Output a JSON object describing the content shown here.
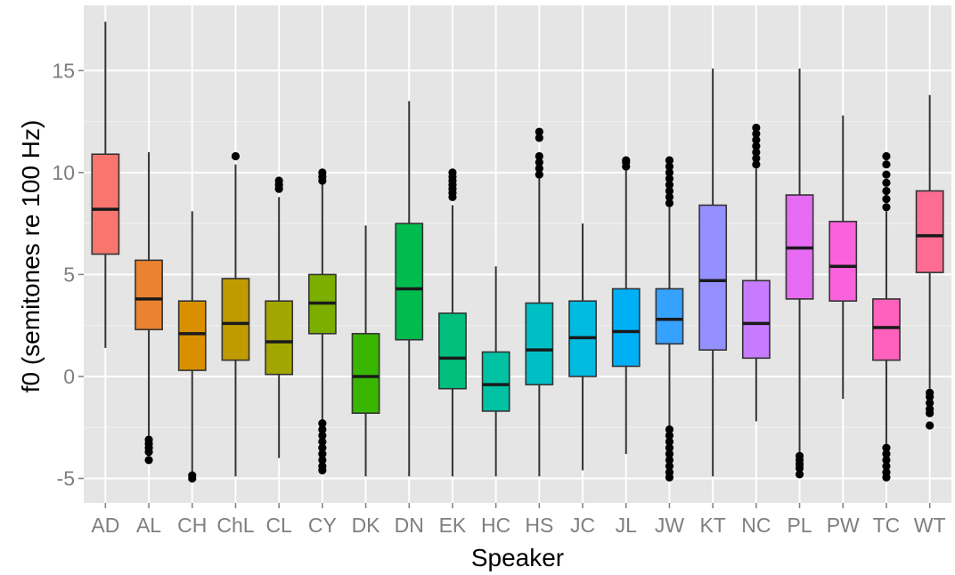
{
  "chart_data": {
    "type": "boxplot",
    "xlabel": "Speaker",
    "ylabel": "f0 (semitones re 100 Hz)",
    "ylim": [
      -6.2,
      18.2
    ],
    "yticks": [
      -5,
      0,
      5,
      10,
      15
    ],
    "ytick_labels": [
      "-5",
      "0",
      "5",
      "10",
      "15"
    ],
    "grid": true,
    "categories": [
      "AD",
      "AL",
      "CH",
      "ChL",
      "CL",
      "CY",
      "DK",
      "DN",
      "EK",
      "HC",
      "HS",
      "JC",
      "JL",
      "JW",
      "KT",
      "NC",
      "PL",
      "PW",
      "TC",
      "WT"
    ],
    "colors": [
      "#F8766D",
      "#EA8331",
      "#D89000",
      "#C09B00",
      "#A3A500",
      "#7CAE00",
      "#39B600",
      "#00BB4E",
      "#00BF7D",
      "#00C1A3",
      "#00BFC4",
      "#00BAE0",
      "#00B0F6",
      "#35A2FF",
      "#9590FF",
      "#C77CFF",
      "#E76BF3",
      "#FA62DB",
      "#FF62BC",
      "#FF6C91"
    ],
    "boxes": [
      {
        "label": "AD",
        "lower_whisker": 1.4,
        "q1": 6.0,
        "median": 8.2,
        "q3": 10.9,
        "upper_whisker": 17.4,
        "outliers": []
      },
      {
        "label": "AL",
        "lower_whisker": -2.9,
        "q1": 2.3,
        "median": 3.8,
        "q3": 5.7,
        "upper_whisker": 11.0,
        "outliers": [
          -3.1,
          -3.3,
          -3.5,
          -3.7,
          -4.1
        ]
      },
      {
        "label": "CH",
        "lower_whisker": -4.8,
        "q1": 0.3,
        "median": 2.1,
        "q3": 3.7,
        "upper_whisker": 8.1,
        "outliers": [
          -4.85,
          -5.0
        ]
      },
      {
        "label": "ChL",
        "lower_whisker": -4.9,
        "q1": 0.8,
        "median": 2.6,
        "q3": 4.8,
        "upper_whisker": 10.4,
        "outliers": [
          10.8
        ]
      },
      {
        "label": "CL",
        "lower_whisker": -4.0,
        "q1": 0.1,
        "median": 1.7,
        "q3": 3.7,
        "upper_whisker": 8.8,
        "outliers": [
          9.2,
          9.4,
          9.6
        ]
      },
      {
        "label": "CY",
        "lower_whisker": -2.2,
        "q1": 2.1,
        "median": 3.6,
        "q3": 5.0,
        "upper_whisker": 9.4,
        "outliers": [
          9.6,
          9.8,
          10.0,
          -2.3,
          -2.6,
          -2.9,
          -3.2,
          -3.5,
          -3.8,
          -4.1,
          -4.4,
          -4.6
        ]
      },
      {
        "label": "DK",
        "lower_whisker": -4.9,
        "q1": -1.8,
        "median": 0.0,
        "q3": 2.1,
        "upper_whisker": 7.4,
        "outliers": []
      },
      {
        "label": "DN",
        "lower_whisker": -4.9,
        "q1": 1.8,
        "median": 4.3,
        "q3": 7.5,
        "upper_whisker": 13.5,
        "outliers": []
      },
      {
        "label": "EK",
        "lower_whisker": -4.9,
        "q1": -0.6,
        "median": 0.9,
        "q3": 3.1,
        "upper_whisker": 8.4,
        "outliers": [
          8.8,
          9.0,
          9.2,
          9.4,
          9.6,
          9.8,
          10.0
        ]
      },
      {
        "label": "HC",
        "lower_whisker": -4.9,
        "q1": -1.7,
        "median": -0.4,
        "q3": 1.2,
        "upper_whisker": 5.4,
        "outliers": []
      },
      {
        "label": "HS",
        "lower_whisker": -4.9,
        "q1": -0.4,
        "median": 1.3,
        "q3": 3.6,
        "upper_whisker": 9.7,
        "outliers": [
          9.9,
          10.2,
          10.5,
          10.8,
          11.7,
          12.0
        ]
      },
      {
        "label": "JC",
        "lower_whisker": -4.6,
        "q1": 0.0,
        "median": 1.9,
        "q3": 3.7,
        "upper_whisker": 7.5,
        "outliers": []
      },
      {
        "label": "JL",
        "lower_whisker": -3.8,
        "q1": 0.5,
        "median": 2.2,
        "q3": 4.3,
        "upper_whisker": 10.1,
        "outliers": [
          10.3,
          10.5,
          10.6
        ]
      },
      {
        "label": "JW",
        "lower_whisker": -2.4,
        "q1": 1.6,
        "median": 2.8,
        "q3": 4.3,
        "upper_whisker": 8.3,
        "outliers": [
          8.5,
          8.8,
          9.1,
          9.4,
          9.7,
          10.0,
          10.3,
          10.6,
          -2.6,
          -2.9,
          -3.2,
          -3.5,
          -3.8,
          -4.1,
          -4.4,
          -4.7,
          -4.95
        ]
      },
      {
        "label": "KT",
        "lower_whisker": -4.9,
        "q1": 1.3,
        "median": 4.7,
        "q3": 8.4,
        "upper_whisker": 15.1,
        "outliers": []
      },
      {
        "label": "NC",
        "lower_whisker": -2.2,
        "q1": 0.9,
        "median": 2.6,
        "q3": 4.7,
        "upper_whisker": 10.2,
        "outliers": [
          10.4,
          10.7,
          11.0,
          11.3,
          11.6,
          11.9,
          12.2
        ]
      },
      {
        "label": "PL",
        "lower_whisker": -3.8,
        "q1": 3.8,
        "median": 6.3,
        "q3": 8.9,
        "upper_whisker": 15.1,
        "outliers": [
          -3.9,
          -4.1,
          -4.3,
          -4.5,
          -4.8
        ]
      },
      {
        "label": "PW",
        "lower_whisker": -1.1,
        "q1": 3.7,
        "median": 5.4,
        "q3": 7.6,
        "upper_whisker": 12.8,
        "outliers": []
      },
      {
        "label": "TC",
        "lower_whisker": -3.3,
        "q1": 0.8,
        "median": 2.4,
        "q3": 3.8,
        "upper_whisker": 8.1,
        "outliers": [
          8.3,
          8.7,
          9.1,
          9.5,
          9.9,
          10.4,
          10.8,
          -3.5,
          -3.8,
          -4.1,
          -4.4,
          -4.7,
          -4.95
        ]
      },
      {
        "label": "WT",
        "lower_whisker": -0.6,
        "q1": 5.1,
        "median": 6.9,
        "q3": 9.1,
        "upper_whisker": 13.8,
        "outliers": [
          -0.8,
          -1.0,
          -1.3,
          -1.6,
          -1.8,
          -2.4
        ]
      }
    ]
  }
}
